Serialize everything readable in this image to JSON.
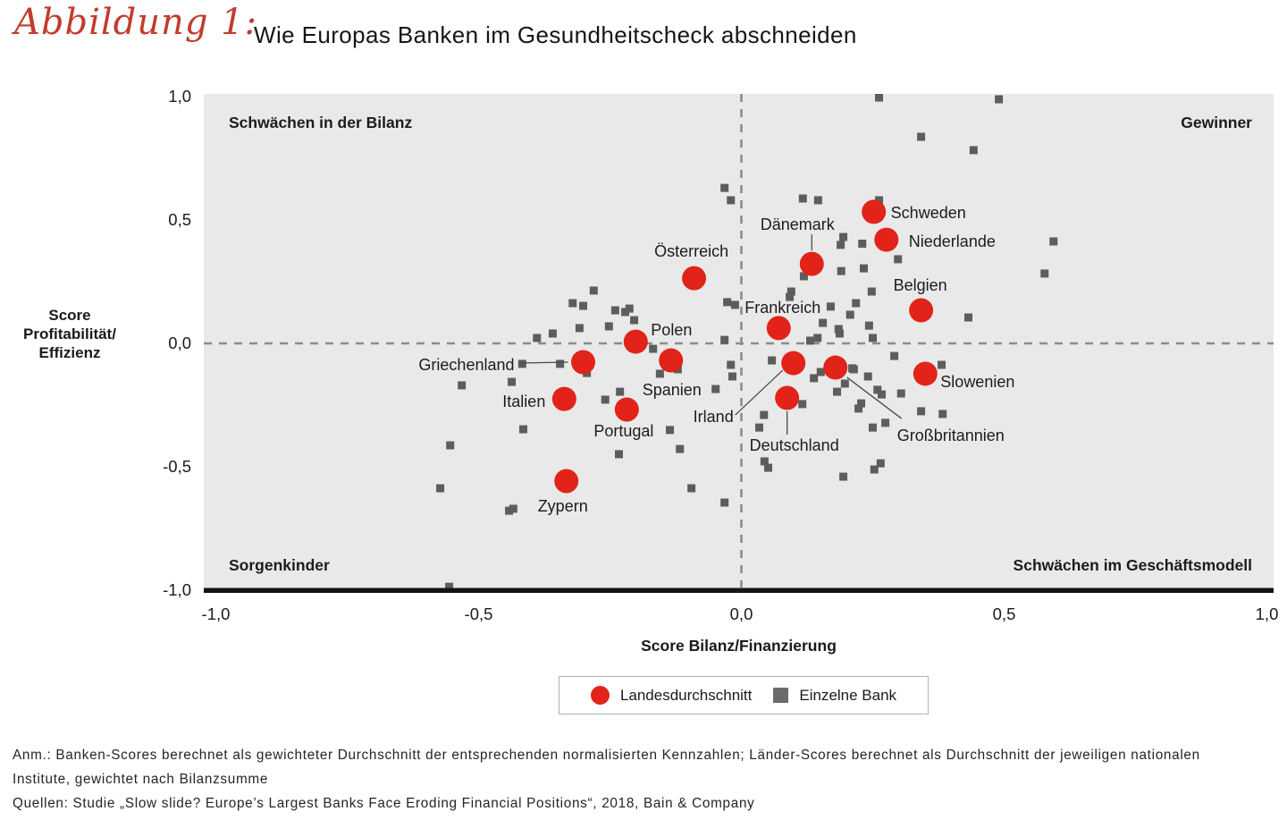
{
  "title": {
    "figure_label": "Abbildung 1:",
    "text": "Wie Europas Banken im Gesundheitscheck abschneiden"
  },
  "colors": {
    "accent_red": "#e2231a",
    "bank_gray": "#5d5d5d",
    "legend_gray": "#6b6b6b",
    "plot_bg": "#e9e9e9",
    "dash_gray": "#8c8c8c",
    "axis_black": "#141414",
    "connector_gray": "#4a4a4a"
  },
  "chart_data": {
    "type": "scatter",
    "title": "Wie Europas Banken im Gesundheitscheck abschneiden",
    "xlabel": "Score Bilanz/Finanzierung",
    "ylabel": "Score Profitabilität/Effizienz",
    "ylabel_lines": [
      "Score",
      "Profitabilität/",
      "Effizienz"
    ],
    "xlim": [
      -1.0,
      1.0
    ],
    "ylim": [
      -1.0,
      1.0
    ],
    "grid": false,
    "x_ticks": [
      "-1,0",
      "-0,5",
      "0,0",
      "0,5",
      "1,0"
    ],
    "y_ticks": [
      "1,0",
      "0,5",
      "0,0",
      "-0,5",
      "-1,0"
    ],
    "x_tick_values": [
      -1.0,
      -0.5,
      0.0,
      0.5,
      1.0
    ],
    "y_tick_values": [
      1.0,
      0.5,
      0.0,
      -0.5,
      -1.0
    ],
    "zero_lines": "dashed",
    "quadrant_labels": {
      "top_left": "Schwächen in der Bilanz",
      "top_right": "Gewinner",
      "bottom_left": "Sorgenkinder",
      "bottom_right": "Schwächen im Geschäftsmodell"
    },
    "legend": {
      "position": "bottom",
      "entries": [
        {
          "label": "Landesdurchschnitt",
          "marker": "circle",
          "color": "#e2231a"
        },
        {
          "label": "Einzelne Bank",
          "marker": "square",
          "color": "#6b6b6b"
        }
      ]
    },
    "series": [
      {
        "name": "Landesdurchschnitt",
        "marker": "circle",
        "color": "#e2231a",
        "points": [
          {
            "label": "Schweden",
            "x": 0.252,
            "y": 0.533,
            "anchor": "start",
            "dx": 19,
            "dy": 7
          },
          {
            "label": "Niederlande",
            "x": 0.276,
            "y": 0.42,
            "anchor": "start",
            "dx": 25,
            "dy": 8
          },
          {
            "label": "Dänemark",
            "x": 0.134,
            "y": 0.322,
            "anchor": "middle",
            "dx": -16,
            "dy": -38,
            "line": [
              0,
              -15,
              0,
              -33
            ]
          },
          {
            "label": "Österreich",
            "x": -0.09,
            "y": 0.264,
            "anchor": "middle",
            "dx": -3,
            "dy": -24
          },
          {
            "label": "Belgien",
            "x": 0.342,
            "y": 0.134,
            "anchor": "start",
            "dx": -31,
            "dy": -22
          },
          {
            "label": "Frankreich",
            "x": 0.071,
            "y": 0.062,
            "anchor": "start",
            "dx": -38,
            "dy": -17
          },
          {
            "label": "Polen",
            "x": -0.201,
            "y": 0.007,
            "anchor": "start",
            "dx": 17,
            "dy": -7
          },
          {
            "label": "Griechenland",
            "x": -0.301,
            "y": -0.076,
            "anchor": "end",
            "dx": -77,
            "dy": 9,
            "line": [
              -72,
              1,
              -17,
              0
            ]
          },
          {
            "label": "Spanien",
            "x": -0.134,
            "y": -0.069,
            "anchor": "start",
            "dx": -32,
            "dy": 39
          },
          {
            "label": "Irland",
            "x": 0.099,
            "y": -0.08,
            "anchor": "end",
            "dx": -67,
            "dy": 66,
            "line": [
              -65,
              58,
              -12,
              8
            ]
          },
          {
            "label": "Großbritannien",
            "x": 0.179,
            "y": -0.098,
            "anchor": "start",
            "dx": 69,
            "dy": 82,
            "line": [
              13,
              11,
              74,
              57
            ]
          },
          {
            "label": "Slowenien",
            "x": 0.35,
            "y": -0.123,
            "anchor": "start",
            "dx": 17,
            "dy": 15
          },
          {
            "label": "Italien",
            "x": -0.337,
            "y": -0.225,
            "anchor": "end",
            "dx": -21,
            "dy": 9
          },
          {
            "label": "Deutschland",
            "x": 0.087,
            "y": -0.221,
            "anchor": "start",
            "dx": -42,
            "dy": 59,
            "line": [
              0,
              15,
              0,
              41
            ]
          },
          {
            "label": "Portugal",
            "x": -0.218,
            "y": -0.268,
            "anchor": "start",
            "dx": -37,
            "dy": 30
          },
          {
            "label": "Zypern",
            "x": -0.333,
            "y": -0.558,
            "anchor": "start",
            "dx": -32,
            "dy": 34
          }
        ]
      },
      {
        "name": "Einzelne Bank",
        "marker": "square",
        "color": "#5d5d5d",
        "points": [
          [
            0.262,
            0.996
          ],
          [
            0.49,
            0.989
          ],
          [
            0.342,
            0.837
          ],
          [
            0.442,
            0.783
          ],
          [
            -0.032,
            0.63
          ],
          [
            -0.02,
            0.58
          ],
          [
            0.117,
            0.587
          ],
          [
            0.146,
            0.58
          ],
          [
            0.262,
            0.58
          ],
          [
            0.194,
            0.431
          ],
          [
            0.189,
            0.399
          ],
          [
            0.23,
            0.404
          ],
          [
            0.594,
            0.413
          ],
          [
            0.298,
            0.341
          ],
          [
            0.119,
            0.272
          ],
          [
            0.19,
            0.293
          ],
          [
            0.233,
            0.304
          ],
          [
            0.577,
            0.283
          ],
          [
            0.095,
            0.21
          ],
          [
            0.092,
            0.188
          ],
          [
            0.17,
            0.149
          ],
          [
            0.218,
            0.163
          ],
          [
            0.207,
            0.116
          ],
          [
            0.248,
            0.21
          ],
          [
            0.432,
            0.105
          ],
          [
            0.155,
            0.083
          ],
          [
            0.185,
            0.058
          ],
          [
            0.187,
            0.04
          ],
          [
            0.131,
            0.011
          ],
          [
            0.145,
            0.022
          ],
          [
            0.243,
            0.072
          ],
          [
            0.25,
            0.022
          ],
          [
            -0.027,
            0.167
          ],
          [
            -0.012,
            0.156
          ],
          [
            -0.032,
            0.014
          ],
          [
            0.291,
            -0.051
          ],
          [
            0.211,
            -0.101
          ],
          [
            0.381,
            -0.087
          ],
          [
            0.304,
            -0.203
          ],
          [
            0.342,
            -0.275
          ],
          [
            0.383,
            -0.286
          ],
          [
            0.058,
            -0.069
          ],
          [
            0.034,
            -0.341
          ],
          [
            0.043,
            -0.29
          ],
          [
            0.116,
            -0.246
          ],
          [
            0.138,
            -0.141
          ],
          [
            0.151,
            -0.116
          ],
          [
            0.182,
            -0.196
          ],
          [
            0.197,
            -0.163
          ],
          [
            0.214,
            -0.105
          ],
          [
            0.241,
            -0.134
          ],
          [
            0.228,
            -0.243
          ],
          [
            0.223,
            -0.264
          ],
          [
            0.259,
            -0.188
          ],
          [
            0.267,
            -0.207
          ],
          [
            0.25,
            -0.341
          ],
          [
            0.274,
            -0.322
          ],
          [
            0.044,
            -0.478
          ],
          [
            0.051,
            -0.504
          ],
          [
            0.194,
            -0.54
          ],
          [
            0.253,
            -0.511
          ],
          [
            0.265,
            -0.486
          ],
          [
            -0.02,
            -0.087
          ],
          [
            -0.017,
            -0.134
          ],
          [
            -0.281,
            0.214
          ],
          [
            -0.321,
            0.163
          ],
          [
            -0.301,
            0.152
          ],
          [
            -0.24,
            0.134
          ],
          [
            -0.221,
            0.127
          ],
          [
            -0.213,
            0.141
          ],
          [
            -0.204,
            0.094
          ],
          [
            -0.308,
            0.062
          ],
          [
            -0.252,
            0.069
          ],
          [
            -0.389,
            0.022
          ],
          [
            -0.359,
            0.04
          ],
          [
            -0.168,
            -0.022
          ],
          [
            -0.155,
            -0.123
          ],
          [
            -0.121,
            -0.105
          ],
          [
            -0.417,
            -0.083
          ],
          [
            -0.345,
            -0.083
          ],
          [
            -0.294,
            -0.12
          ],
          [
            -0.437,
            -0.156
          ],
          [
            -0.532,
            -0.17
          ],
          [
            -0.259,
            -0.228
          ],
          [
            -0.231,
            -0.196
          ],
          [
            -0.049,
            -0.185
          ],
          [
            -0.136,
            -0.351
          ],
          [
            -0.415,
            -0.348
          ],
          [
            -0.554,
            -0.413
          ],
          [
            -0.233,
            -0.449
          ],
          [
            -0.117,
            -0.428
          ],
          [
            -0.573,
            -0.587
          ],
          [
            -0.442,
            -0.678
          ],
          [
            -0.434,
            -0.67
          ],
          [
            -0.095,
            -0.587
          ],
          [
            -0.032,
            -0.645
          ],
          [
            -0.556,
            -0.986
          ]
        ]
      }
    ]
  },
  "footer": {
    "line1": "Anm.: Banken-Scores berechnet als gewichteter Durchschnitt der entsprechenden normalisierten Kennzahlen; Länder-Scores berechnet als Durchschnitt der jeweiligen nationalen",
    "line2": "Institute, gewichtet nach Bilanzsumme",
    "line3": "Quellen: Studie „Slow slide? Europe’s Largest Banks Face Eroding Financial Positions“, 2018, Bain & Company"
  }
}
